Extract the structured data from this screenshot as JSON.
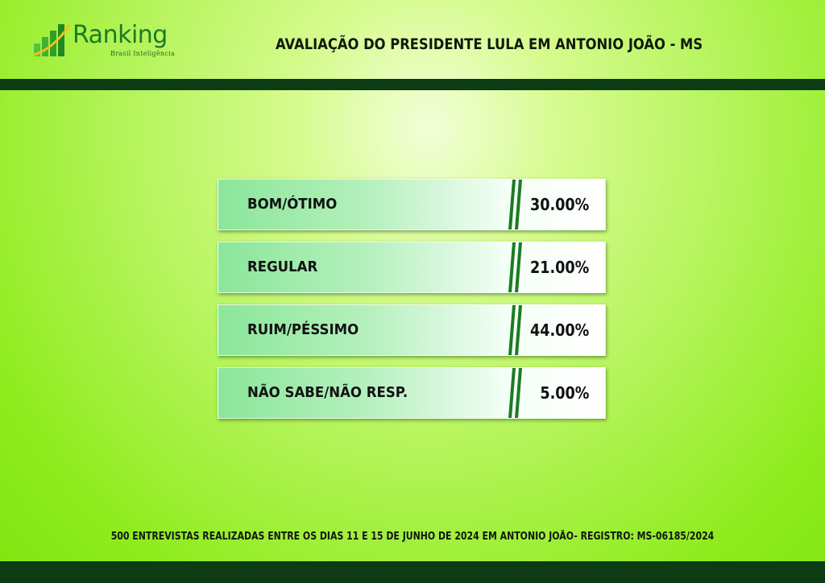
{
  "logo": {
    "name": "Ranking",
    "tagline": "Brasil Inteligência"
  },
  "title": "AVALIAÇÃO DO PRESIDENTE LULA EM ANTONIO JOÃO - MS",
  "chart_data": {
    "type": "table",
    "title": "AVALIAÇÃO DO PRESIDENTE LULA EM ANTONIO JOÃO - MS",
    "categories": [
      "BOM/ÓTIMO",
      "REGULAR",
      "RUIM/PÉSSIMO",
      "NÃO SABE/NÃO RESP."
    ],
    "values": [
      30.0,
      21.0,
      44.0,
      5.0
    ],
    "value_labels": [
      "30.00%",
      "21.00%",
      "44.00%",
      "5.00%"
    ],
    "unit": "%"
  },
  "footer": "500 ENTREVISTAS REALIZADAS ENTRE OS DIAS 11 E 15 DE JUNHO DE 2024 EM ANTONIO JOÃO- REGISTRO: MS-06185/2024",
  "colors": {
    "dark_green": "#0d3b14",
    "accent_green": "#1d7a24",
    "background": "#a8f04a"
  }
}
